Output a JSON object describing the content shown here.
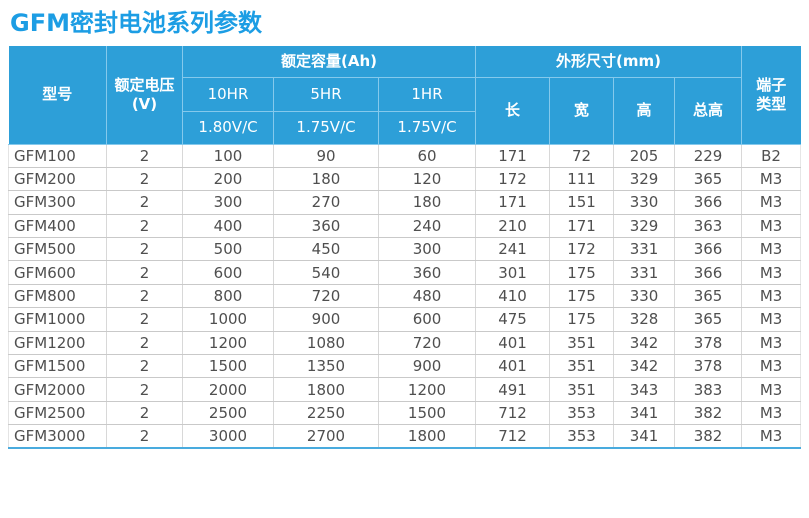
{
  "page": {
    "title": "GFM密封电池系列参数"
  },
  "colors": {
    "title_blue": "#1c9de4",
    "header_bg": "#2d9fd8",
    "header_divider": "#85c9ec",
    "bottom_border": "#49abde",
    "text_dark": "#4f4f4f",
    "row_line": "#c9c9c9",
    "col_line": "#d8d8d8"
  },
  "table": {
    "header": {
      "model": "型号",
      "voltage_line1": "额定电压",
      "voltage_line2": "(V)",
      "capacity_group": "额定容量(Ah)",
      "capacity_cols": [
        {
          "rate": "10HR",
          "cutoff": "1.80V/C"
        },
        {
          "rate": "5HR",
          "cutoff": "1.75V/C"
        },
        {
          "rate": "1HR",
          "cutoff": "1.75V/C"
        }
      ],
      "dimension_group": "外形尺寸(mm)",
      "dimension_cols": [
        "长",
        "宽",
        "高",
        "总高"
      ],
      "terminal_line1": "端子",
      "terminal_line2": "类型"
    },
    "rows": [
      [
        "GFM100",
        "2",
        "100",
        "90",
        "60",
        "171",
        "72",
        "205",
        "229",
        "B2"
      ],
      [
        "GFM200",
        "2",
        "200",
        "180",
        "120",
        "172",
        "111",
        "329",
        "365",
        "M3"
      ],
      [
        "GFM300",
        "2",
        "300",
        "270",
        "180",
        "171",
        "151",
        "330",
        "366",
        "M3"
      ],
      [
        "GFM400",
        "2",
        "400",
        "360",
        "240",
        "210",
        "171",
        "329",
        "363",
        "M3"
      ],
      [
        "GFM500",
        "2",
        "500",
        "450",
        "300",
        "241",
        "172",
        "331",
        "366",
        "M3"
      ],
      [
        "GFM600",
        "2",
        "600",
        "540",
        "360",
        "301",
        "175",
        "331",
        "366",
        "M3"
      ],
      [
        "GFM800",
        "2",
        "800",
        "720",
        "480",
        "410",
        "175",
        "330",
        "365",
        "M3"
      ],
      [
        "GFM1000",
        "2",
        "1000",
        "900",
        "600",
        "475",
        "175",
        "328",
        "365",
        "M3"
      ],
      [
        "GFM1200",
        "2",
        "1200",
        "1080",
        "720",
        "401",
        "351",
        "342",
        "378",
        "M3"
      ],
      [
        "GFM1500",
        "2",
        "1500",
        "1350",
        "900",
        "401",
        "351",
        "342",
        "378",
        "M3"
      ],
      [
        "GFM2000",
        "2",
        "2000",
        "1800",
        "1200",
        "491",
        "351",
        "343",
        "383",
        "M3"
      ],
      [
        "GFM2500",
        "2",
        "2500",
        "2250",
        "1500",
        "712",
        "353",
        "341",
        "382",
        "M3"
      ],
      [
        "GFM3000",
        "2",
        "3000",
        "2700",
        "1800",
        "712",
        "353",
        "341",
        "382",
        "M3"
      ]
    ]
  }
}
